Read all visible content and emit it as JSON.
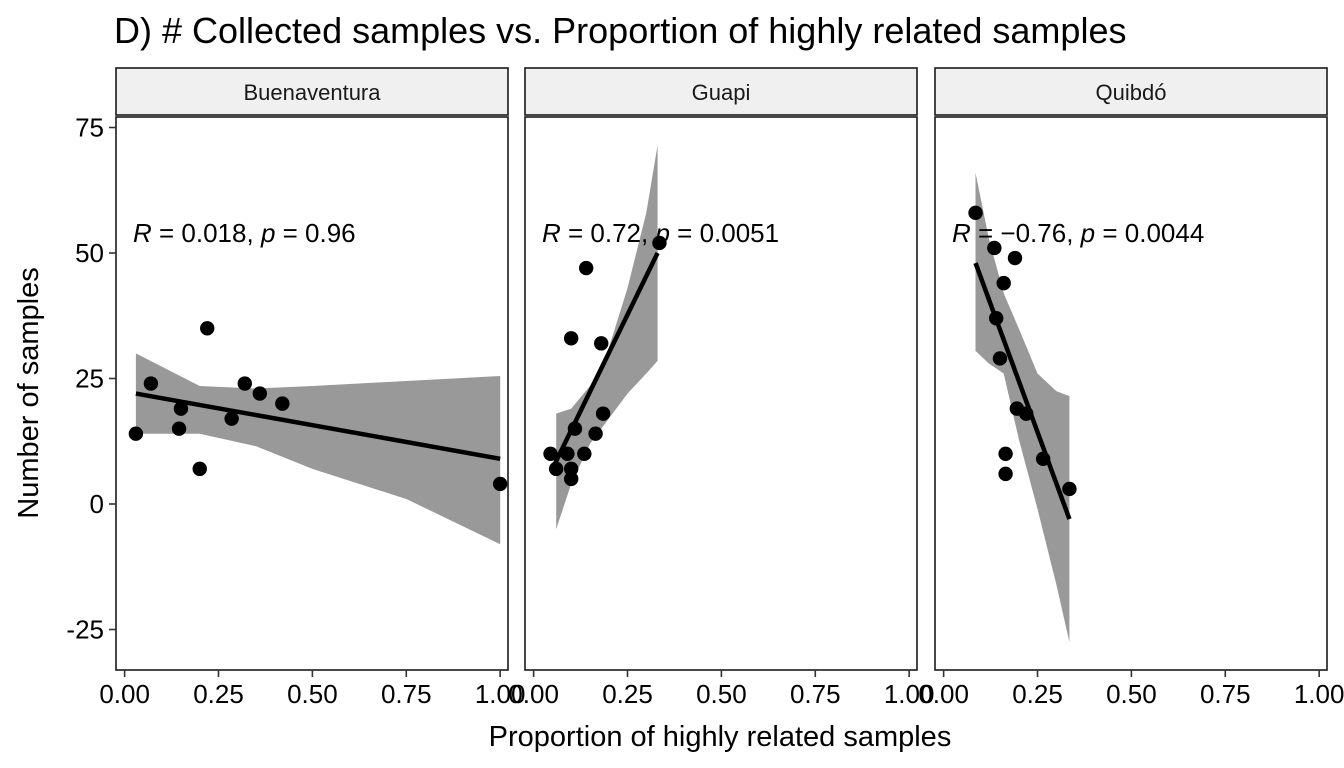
{
  "chart_data": {
    "type": "scatter",
    "title": "D) # Collected samples vs. Proportion of highly related samples",
    "xlabel": "Proportion of highly related samples",
    "ylabel": "Number of samples",
    "xlim": [
      0,
      1
    ],
    "ylim": [
      -33,
      77
    ],
    "x_ticks": [
      "0.00",
      "0.25",
      "0.50",
      "0.75",
      "1.00"
    ],
    "y_ticks": [
      "-25",
      "0",
      "25",
      "50",
      "75"
    ],
    "grid": false,
    "facets": [
      {
        "name": "Buenaventura",
        "annotation": {
          "r_label": "R",
          "r_value": " = 0.018, ",
          "p_label": "p",
          "p_value": " = 0.96"
        },
        "points": [
          {
            "x": 0.03,
            "y": 14
          },
          {
            "x": 0.07,
            "y": 24
          },
          {
            "x": 0.145,
            "y": 15
          },
          {
            "x": 0.15,
            "y": 19
          },
          {
            "x": 0.2,
            "y": 7
          },
          {
            "x": 0.22,
            "y": 35
          },
          {
            "x": 0.285,
            "y": 17
          },
          {
            "x": 0.32,
            "y": 24
          },
          {
            "x": 0.36,
            "y": 22
          },
          {
            "x": 0.42,
            "y": 20
          },
          {
            "x": 1.0,
            "y": 4
          }
        ],
        "fit": [
          {
            "x": 0.03,
            "y": 22
          },
          {
            "x": 1.0,
            "y": 9
          }
        ],
        "ci": {
          "x": [
            0.03,
            0.2,
            0.35,
            0.5,
            0.75,
            1.0
          ],
          "upper": [
            30,
            23.5,
            23,
            23.5,
            24.5,
            25.5
          ],
          "lower": [
            14,
            14,
            11.5,
            7,
            1,
            -8
          ]
        }
      },
      {
        "name": "Guapi",
        "annotation": {
          "r_label": "R",
          "r_value": " = 0.72, ",
          "p_label": "p",
          "p_value": " = 0.0051"
        },
        "points": [
          {
            "x": 0.045,
            "y": 10
          },
          {
            "x": 0.06,
            "y": 7
          },
          {
            "x": 0.09,
            "y": 10
          },
          {
            "x": 0.1,
            "y": 5
          },
          {
            "x": 0.1,
            "y": 7
          },
          {
            "x": 0.1,
            "y": 33
          },
          {
            "x": 0.11,
            "y": 15
          },
          {
            "x": 0.135,
            "y": 10
          },
          {
            "x": 0.14,
            "y": 47
          },
          {
            "x": 0.165,
            "y": 14
          },
          {
            "x": 0.18,
            "y": 32
          },
          {
            "x": 0.185,
            "y": 18
          },
          {
            "x": 0.335,
            "y": 52
          }
        ],
        "fit": [
          {
            "x": 0.05,
            "y": 7
          },
          {
            "x": 0.33,
            "y": 50
          }
        ],
        "ci": {
          "x": [
            0.06,
            0.1,
            0.15,
            0.2,
            0.25,
            0.3,
            0.33
          ],
          "upper": [
            18,
            19,
            23.5,
            31,
            43,
            58,
            71.5
          ],
          "lower": [
            -5,
            4,
            12,
            17,
            22,
            26,
            28.5
          ]
        }
      },
      {
        "name": "Quibdó",
        "annotation": {
          "r_label": "R",
          "r_value": " = −0.76, ",
          "p_label": "p",
          "p_value": " = 0.0044"
        },
        "points": [
          {
            "x": 0.085,
            "y": 58
          },
          {
            "x": 0.135,
            "y": 51
          },
          {
            "x": 0.14,
            "y": 37
          },
          {
            "x": 0.15,
            "y": 29
          },
          {
            "x": 0.16,
            "y": 44
          },
          {
            "x": 0.165,
            "y": 10
          },
          {
            "x": 0.165,
            "y": 6
          },
          {
            "x": 0.19,
            "y": 49
          },
          {
            "x": 0.195,
            "y": 19
          },
          {
            "x": 0.22,
            "y": 18
          },
          {
            "x": 0.265,
            "y": 9
          },
          {
            "x": 0.335,
            "y": 3
          }
        ],
        "fit": [
          {
            "x": 0.085,
            "y": 48
          },
          {
            "x": 0.335,
            "y": -3
          }
        ],
        "ci": {
          "x": [
            0.085,
            0.12,
            0.16,
            0.2,
            0.25,
            0.3,
            0.335
          ],
          "upper": [
            66,
            53,
            42,
            35,
            26,
            22.5,
            21.5
          ],
          "lower": [
            30.5,
            28,
            26,
            13,
            -1,
            -16,
            -27.5
          ]
        }
      }
    ]
  },
  "colors": {
    "point": "#000000",
    "fit_line": "#000000",
    "ci_band": "#999999",
    "strip_bg": "#f0f0f0",
    "panel_border": "#1a1a1a"
  }
}
